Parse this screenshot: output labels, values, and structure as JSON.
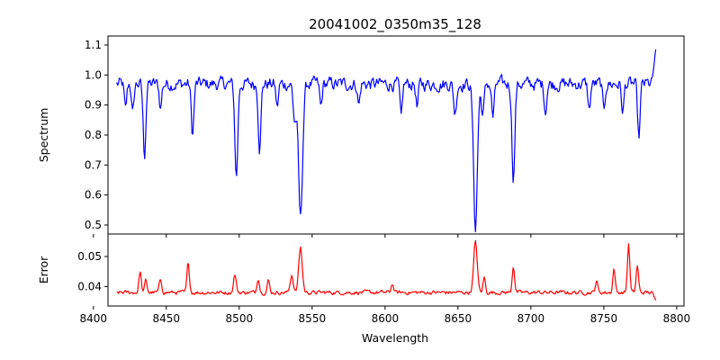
{
  "chart_data": {
    "type": "line",
    "title": "20041002_0350m35_128",
    "xlabel": "Wavelength",
    "x_ticks": [
      8400,
      8450,
      8500,
      8550,
      8600,
      8650,
      8700,
      8750,
      8800
    ],
    "xlim": [
      8410,
      8805
    ],
    "x_range": [
      8416,
      8786
    ],
    "panels": [
      {
        "id": "spectrum",
        "ylabel": "Spectrum",
        "ylim": [
          0.47,
          1.13
        ],
        "y_ticks": [
          0.5,
          0.6,
          0.7,
          0.8,
          0.9,
          1.0,
          1.1
        ],
        "color": "#0000ff",
        "baseline": 0.97,
        "noise": 0.04,
        "features": [
          {
            "x": 8422,
            "depth": 0.09,
            "width": 0.8
          },
          {
            "x": 8427,
            "depth": 0.1,
            "width": 0.8
          },
          {
            "x": 8435,
            "depth": 0.24,
            "width": 0.9
          },
          {
            "x": 8446,
            "depth": 0.08,
            "width": 0.8
          },
          {
            "x": 8468,
            "depth": 0.17,
            "width": 0.9
          },
          {
            "x": 8498,
            "depth": 0.31,
            "width": 1.0
          },
          {
            "x": 8514,
            "depth": 0.21,
            "width": 0.9
          },
          {
            "x": 8526,
            "depth": 0.08,
            "width": 0.8
          },
          {
            "x": 8538,
            "depth": 0.12,
            "width": 1.0
          },
          {
            "x": 8542,
            "depth": 0.45,
            "width": 1.4
          },
          {
            "x": 8556,
            "depth": 0.08,
            "width": 0.8
          },
          {
            "x": 8582,
            "depth": 0.07,
            "width": 0.8
          },
          {
            "x": 8611,
            "depth": 0.12,
            "width": 0.8
          },
          {
            "x": 8622,
            "depth": 0.08,
            "width": 0.8
          },
          {
            "x": 8648,
            "depth": 0.1,
            "width": 0.9
          },
          {
            "x": 8662,
            "depth": 0.48,
            "width": 1.3
          },
          {
            "x": 8667,
            "depth": 0.1,
            "width": 1.0
          },
          {
            "x": 8674,
            "depth": 0.11,
            "width": 0.9
          },
          {
            "x": 8688,
            "depth": 0.31,
            "width": 1.0
          },
          {
            "x": 8710,
            "depth": 0.09,
            "width": 0.8
          },
          {
            "x": 8740,
            "depth": 0.09,
            "width": 0.8
          },
          {
            "x": 8750,
            "depth": 0.09,
            "width": 0.8
          },
          {
            "x": 8763,
            "depth": 0.1,
            "width": 0.8
          },
          {
            "x": 8774,
            "depth": 0.18,
            "width": 0.9
          }
        ],
        "end_value": 1.1
      },
      {
        "id": "error",
        "ylabel": "Error",
        "ylim": [
          0.0335,
          0.0575
        ],
        "y_ticks": [
          0.04,
          0.05
        ],
        "color": "#ff0000",
        "baseline": 0.038,
        "noise": 0.0012,
        "features": [
          {
            "x": 8432,
            "height": 0.007,
            "width": 0.8
          },
          {
            "x": 8436,
            "height": 0.004,
            "width": 0.8
          },
          {
            "x": 8446,
            "height": 0.004,
            "width": 0.9
          },
          {
            "x": 8465,
            "height": 0.01,
            "width": 0.8
          },
          {
            "x": 8497,
            "height": 0.006,
            "width": 0.9
          },
          {
            "x": 8513,
            "height": 0.005,
            "width": 0.8
          },
          {
            "x": 8520,
            "height": 0.004,
            "width": 0.8
          },
          {
            "x": 8536,
            "height": 0.006,
            "width": 1.0
          },
          {
            "x": 8542,
            "height": 0.015,
            "width": 1.2
          },
          {
            "x": 8605,
            "height": 0.003,
            "width": 0.8
          },
          {
            "x": 8662,
            "height": 0.017,
            "width": 1.2
          },
          {
            "x": 8668,
            "height": 0.005,
            "width": 0.8
          },
          {
            "x": 8688,
            "height": 0.009,
            "width": 0.8
          },
          {
            "x": 8745,
            "height": 0.004,
            "width": 0.8
          },
          {
            "x": 8757,
            "height": 0.008,
            "width": 0.8
          },
          {
            "x": 8767,
            "height": 0.016,
            "width": 0.8
          },
          {
            "x": 8773,
            "height": 0.009,
            "width": 0.8
          }
        ],
        "end_value": 0.035
      }
    ]
  }
}
